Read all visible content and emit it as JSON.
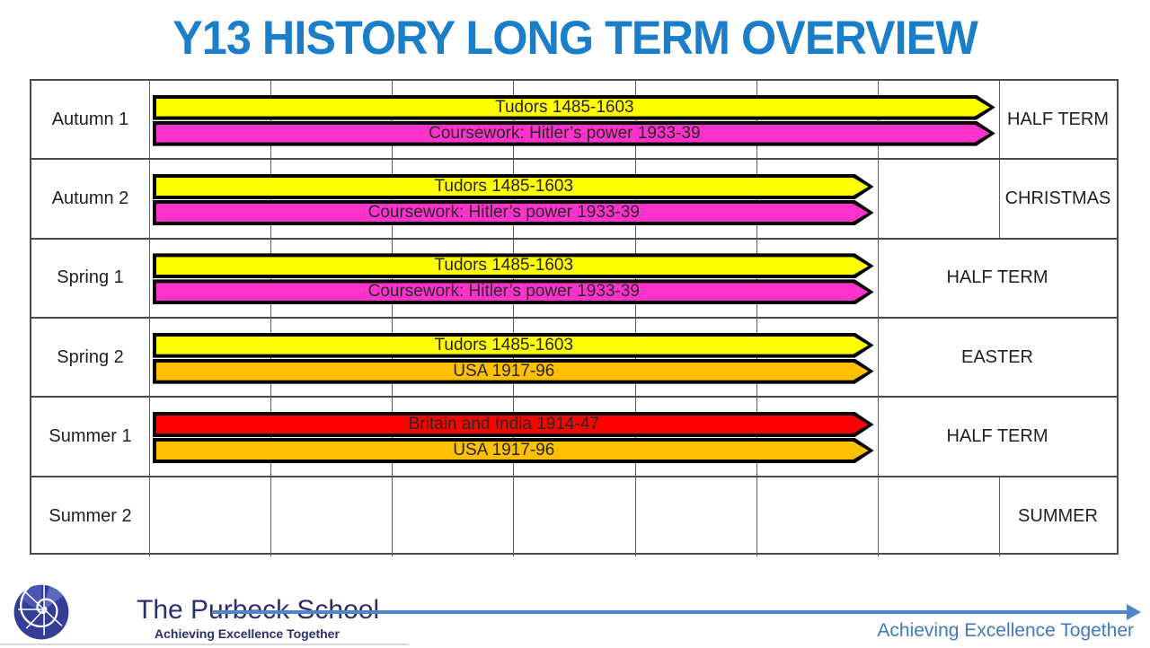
{
  "title": "Y13 HISTORY LONG TERM OVERVIEW",
  "colors": {
    "title_blue": "#1b7ec9",
    "yellow": "#FFFF00",
    "magenta": "#FF33CC",
    "gold": "#FFC000",
    "red": "#FF0000",
    "grid_gray": "#4a4a4a",
    "navy": "#2b2f6e",
    "footer_blue": "#4e86c6",
    "motto_blue": "#3e7bba"
  },
  "table": {
    "rows": [
      {
        "label": "Autumn 1",
        "bars": [
          {
            "text": "Tudors 1485-1603",
            "color": "#FFFF00",
            "span_cols": 7
          },
          {
            "text": "Coursework: Hitler’s power 1933-39",
            "color": "#FF33CC",
            "span_cols": 7
          }
        ],
        "term_label": "HALF TERM",
        "term_cell": "last"
      },
      {
        "label": "Autumn 2",
        "bars": [
          {
            "text": "Tudors 1485-1603",
            "color": "#FFFF00",
            "span_cols": 6
          },
          {
            "text": "Coursework: Hitler’s power 1933-39",
            "color": "#FF33CC",
            "span_cols": 6
          }
        ],
        "term_label": "CHRISTMAS",
        "term_cell": "last"
      },
      {
        "label": "Spring 1",
        "bars": [
          {
            "text": "Tudors 1485-1603",
            "color": "#FFFF00",
            "span_cols": 6
          },
          {
            "text": "Coursework: Hitler’s power 1933-39",
            "color": "#FF33CC",
            "span_cols": 6
          }
        ],
        "term_label": "HALF TERM",
        "term_cell": "merged"
      },
      {
        "label": "Spring 2",
        "bars": [
          {
            "text": "Tudors 1485-1603",
            "color": "#FFFF00",
            "span_cols": 6
          },
          {
            "text": "USA 1917-96",
            "color": "#FFC000",
            "span_cols": 6
          }
        ],
        "term_label": "EASTER",
        "term_cell": "merged"
      },
      {
        "label": "Summer 1",
        "bars": [
          {
            "text": "Britain and India 1914-47",
            "color": "#FF0000",
            "span_cols": 6
          },
          {
            "text": "USA 1917-96",
            "color": "#FFC000",
            "span_cols": 6
          }
        ],
        "term_label": "HALF TERM",
        "term_cell": "merged"
      },
      {
        "label": "Summer 2",
        "bars": [],
        "term_label": "SUMMER",
        "term_cell": "last"
      }
    ]
  },
  "footer": {
    "school_name": "The Purbeck School",
    "school_tagline": "Achieving Excellence Together",
    "motto": "Achieving Excellence Together"
  }
}
